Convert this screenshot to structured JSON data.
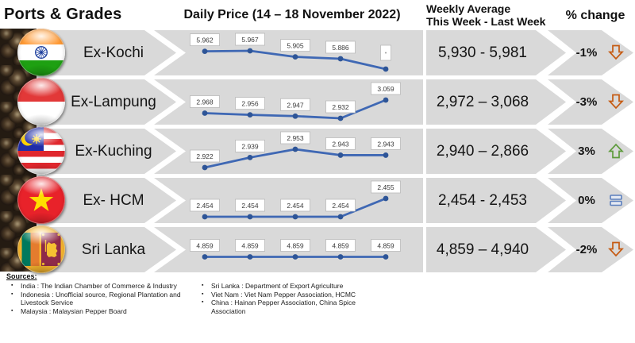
{
  "header": {
    "ports_grades": "Ports & Grades",
    "daily_price": "Daily Price (14 – 18 November 2022)",
    "weekly_avg_line1": "Weekly Average",
    "weekly_avg_line2": "This Week - Last Week",
    "pct_change": "% change"
  },
  "colors": {
    "band": "#D9D9D9",
    "line": "#3F68B4",
    "dot": "#2E5597",
    "label_border": "#b9b9b9",
    "down": "#C55A11",
    "up": "#5E9B3C",
    "flat": "#5B7FBD"
  },
  "rows": [
    {
      "country": "India",
      "port": "Ex-Kochi",
      "weekly": "5,930 - 5,981",
      "change": "-1%",
      "trend": "down"
    },
    {
      "country": "Indonesia",
      "port": "Ex-Lampung",
      "weekly": "2,972 – 3,068",
      "change": "-3%",
      "trend": "down"
    },
    {
      "country": "Malaysia",
      "port": "Ex-Kuching",
      "weekly": "2,940 – 2,866",
      "change": "3%",
      "trend": "up"
    },
    {
      "country": "Viet Nam",
      "port": "Ex- HCM",
      "weekly": "2,454 - 2,453",
      "change": "0%",
      "trend": "flat"
    },
    {
      "country": "Sri Lanka",
      "port": "Sri Lanka",
      "weekly": "4,859 – 4,940",
      "change": "-2%",
      "trend": "down"
    }
  ],
  "chart_data": {
    "type": "line",
    "title": "Daily Price (14 – 18 November 2022)",
    "x_points": 5,
    "legend_position": "none",
    "grid": false,
    "series": [
      {
        "name": "Ex-Kochi",
        "values": [
          5.962,
          5.967,
          5.905,
          5.886,
          5.78
        ],
        "labels": [
          "5.962",
          "5.967",
          "5.905",
          "5.886",
          ""
        ]
      },
      {
        "name": "Ex-Lampung",
        "values": [
          2.968,
          2.956,
          2.947,
          2.932,
          3.059
        ],
        "labels": [
          "2.968",
          "2.956",
          "2.947",
          "2.932",
          "3.059"
        ]
      },
      {
        "name": "Ex-Kuching",
        "values": [
          2.922,
          2.939,
          2.953,
          2.943,
          2.943
        ],
        "labels": [
          "2.922",
          "2.939",
          "2.953",
          "2.943",
          "2.943"
        ]
      },
      {
        "name": "Ex- HCM",
        "values": [
          2.454,
          2.454,
          2.454,
          2.454,
          2.455
        ],
        "labels": [
          "2.454",
          "2.454",
          "2.454",
          "2.454",
          "2.455"
        ]
      },
      {
        "name": "Sri Lanka",
        "values": [
          4.859,
          4.859,
          4.859,
          4.859,
          4.859
        ],
        "labels": [
          "4.859",
          "4.859",
          "4.859",
          "4.859",
          "4.859"
        ]
      }
    ],
    "note": "Fifth point label of Ex-Kochi series is an illegible tiny label box in the source image; its value is estimated from line position."
  },
  "sources": {
    "title": "Sources:",
    "col1": [
      "India : The Indian Chamber of Commerce & Industry",
      "Indonesia : Unofficial source, Regional Plantation and Livestock Service",
      "Malaysia : Malaysian Pepper Board"
    ],
    "col2": [
      "Sri Lanka : Department of Export Agriculture",
      "Viet Nam : Viet Nam Pepper Association, HCMC",
      "China : Hainan Pepper Association, China Spice Association"
    ]
  }
}
